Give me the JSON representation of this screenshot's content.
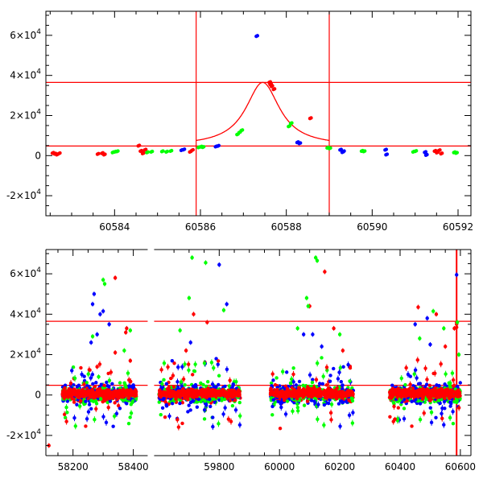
{
  "chart_data": [
    {
      "type": "scatter",
      "title": "",
      "xlabel": "",
      "ylabel": "",
      "xlim": [
        60582.4,
        60592.3
      ],
      "ylim": [
        -30000,
        72000
      ],
      "x_ticks": [
        60584,
        60586,
        60588,
        60590,
        60592
      ],
      "y_ticks": [
        -20000,
        0,
        20000,
        40000,
        60000
      ],
      "y_tick_labels": [
        {
          "mant": "-2×10",
          "exp": "4"
        },
        {
          "mant": "0",
          "exp": ""
        },
        {
          "mant": "2×10",
          "exp": "4"
        },
        {
          "mant": "4×10",
          "exp": "4"
        },
        {
          "mant": "6×10",
          "exp": "4"
        }
      ],
      "reference_lines": {
        "horizontal": [
          36500,
          4800
        ],
        "vertical": [
          60585.9,
          60589.0
        ],
        "color": "#ff0000"
      },
      "model_curve": {
        "color": "#ff0000",
        "peak_x": 60587.45,
        "peak_y": 36500,
        "baseline": 4800,
        "width": 0.48,
        "range": [
          60585.9,
          60589.0
        ]
      },
      "series": [
        {
          "color": "#ff0000",
          "points": [
            [
              60582.55,
              1200
            ],
            [
              60582.6,
              800
            ],
            [
              60582.65,
              400
            ],
            [
              60582.7,
              1000
            ],
            [
              60583.6,
              700
            ],
            [
              60583.7,
              1100
            ],
            [
              60583.75,
              400
            ],
            [
              60584.55,
              4800
            ],
            [
              60584.6,
              2200
            ],
            [
              60584.65,
              1000
            ],
            [
              60584.7,
              2800
            ],
            [
              60585.75,
              1800
            ],
            [
              60585.8,
              2600
            ],
            [
              60587.6,
              36500
            ],
            [
              60587.65,
              34500
            ],
            [
              60587.7,
              33000
            ],
            [
              60587.62,
              35500
            ],
            [
              60588.55,
              18500
            ],
            [
              60591.45,
              2200
            ],
            [
              60591.5,
              1400
            ],
            [
              60591.55,
              2500
            ],
            [
              60591.6,
              900
            ]
          ]
        },
        {
          "color": "#00ff00",
          "points": [
            [
              60583.95,
              1500
            ],
            [
              60584.0,
              1800
            ],
            [
              60584.05,
              2000
            ],
            [
              60584.75,
              1500
            ],
            [
              60584.85,
              1800
            ],
            [
              60585.1,
              2000
            ],
            [
              60585.2,
              1800
            ],
            [
              60585.3,
              2200
            ],
            [
              60585.95,
              4000
            ],
            [
              60586.0,
              4300
            ],
            [
              60586.05,
              4100
            ],
            [
              60586.85,
              10500
            ],
            [
              60586.9,
              11500
            ],
            [
              60586.95,
              12500
            ],
            [
              60588.05,
              14500
            ],
            [
              60588.1,
              16000
            ],
            [
              60588.95,
              3800
            ],
            [
              60589.0,
              3500
            ],
            [
              60589.75,
              2200
            ],
            [
              60589.8,
              2000
            ],
            [
              60590.95,
              1800
            ],
            [
              60591.0,
              2100
            ],
            [
              60591.9,
              1500
            ],
            [
              60591.95,
              1200
            ]
          ]
        },
        {
          "color": "#0000ff",
          "points": [
            [
              60585.55,
              2600
            ],
            [
              60585.6,
              2900
            ],
            [
              60586.35,
              4400
            ],
            [
              60586.4,
              4700
            ],
            [
              60587.3,
              59500
            ],
            [
              60588.25,
              6500
            ],
            [
              60588.3,
              6000
            ],
            [
              60589.25,
              2800
            ],
            [
              60589.3,
              1600
            ],
            [
              60589.32,
              2000
            ],
            [
              60590.3,
              2800
            ],
            [
              60590.32,
              400
            ],
            [
              60591.22,
              1600
            ],
            [
              60591.25,
              200
            ]
          ]
        }
      ]
    },
    {
      "type": "scatter",
      "title": "",
      "xlabel": "",
      "ylabel": "",
      "xlim": [
        58110,
        60635
      ],
      "ylim": [
        -30000,
        72000
      ],
      "x_ticks": [
        58200,
        58400,
        59800,
        60000,
        60200,
        60400,
        60600
      ],
      "y_ticks": [
        -20000,
        0,
        20000,
        40000,
        60000
      ],
      "y_tick_labels": [
        {
          "mant": "-2×10",
          "exp": "4"
        },
        {
          "mant": "0",
          "exp": ""
        },
        {
          "mant": "2×10",
          "exp": "4"
        },
        {
          "mant": "4×10",
          "exp": "4"
        },
        {
          "mant": "6×10",
          "exp": "4"
        }
      ],
      "axis_break": {
        "from": 58445,
        "to": 59560
      },
      "reference_lines": {
        "horizontal": [
          36500,
          4800
        ],
        "vertical": [
          60587.5
        ],
        "color": "#ff0000"
      },
      "seasons": [
        {
          "start": 58165,
          "end": 58410,
          "peak_near": 58300
        },
        {
          "start": 59600,
          "end": 59870,
          "peak_near": 59720
        },
        {
          "start": 59970,
          "end": 60245,
          "peak_near": 60110
        },
        {
          "start": 60365,
          "end": 60600,
          "peak_near": 60490
        }
      ],
      "series": [
        {
          "color": "#ff0000",
          "points": [
            [
              58340,
              58000
            ],
            [
              58375,
              31000
            ],
            [
              58378,
              33000
            ],
            [
              58340,
              21000
            ],
            [
              58390,
              17000
            ],
            [
              58280,
              14000
            ],
            [
              58120,
              -25000
            ],
            [
              59715,
              40000
            ],
            [
              59760,
              36000
            ],
            [
              59690,
              22000
            ],
            [
              60150,
              61000
            ],
            [
              60100,
              44000
            ],
            [
              60180,
              33000
            ],
            [
              60210,
              22000
            ],
            [
              60460,
              43500
            ],
            [
              60520,
              40000
            ],
            [
              60550,
              24000
            ],
            [
              60580,
              33000
            ],
            [
              60383,
              -12000
            ],
            [
              60587.5,
              36000
            ],
            [
              60587.5,
              33500
            ],
            [
              60587.5,
              35000
            ]
          ]
        },
        {
          "color": "#00ff00",
          "points": [
            [
              58300,
              57000
            ],
            [
              58305,
              55000
            ],
            [
              58265,
              29000
            ],
            [
              58390,
              32000
            ],
            [
              58370,
              22000
            ],
            [
              58285,
              9000
            ],
            [
              59710,
              68000
            ],
            [
              59755,
              65500
            ],
            [
              59815,
              42000
            ],
            [
              59700,
              48000
            ],
            [
              59670,
              32000
            ],
            [
              60120,
              68000
            ],
            [
              60125,
              66500
            ],
            [
              60090,
              48000
            ],
            [
              60095,
              44000
            ],
            [
              60060,
              33000
            ],
            [
              60200,
              30000
            ],
            [
              60510,
              41500
            ],
            [
              60545,
              33000
            ],
            [
              60465,
              28000
            ],
            [
              60590,
              36000
            ],
            [
              60595,
              20000
            ]
          ]
        },
        {
          "color": "#0000ff",
          "points": [
            [
              58270,
              50000
            ],
            [
              58265,
              45000
            ],
            [
              58290,
              40000
            ],
            [
              58300,
              41500
            ],
            [
              58320,
              35000
            ],
            [
              58280,
              30000
            ],
            [
              58260,
              26000
            ],
            [
              59800,
              64500
            ],
            [
              59825,
              45000
            ],
            [
              59705,
              26000
            ],
            [
              60080,
              30000
            ],
            [
              60110,
              30000
            ],
            [
              60140,
              24000
            ],
            [
              60490,
              38000
            ],
            [
              60450,
              35000
            ],
            [
              60500,
              25000
            ],
            [
              60587.5,
              59500
            ]
          ]
        }
      ]
    }
  ]
}
